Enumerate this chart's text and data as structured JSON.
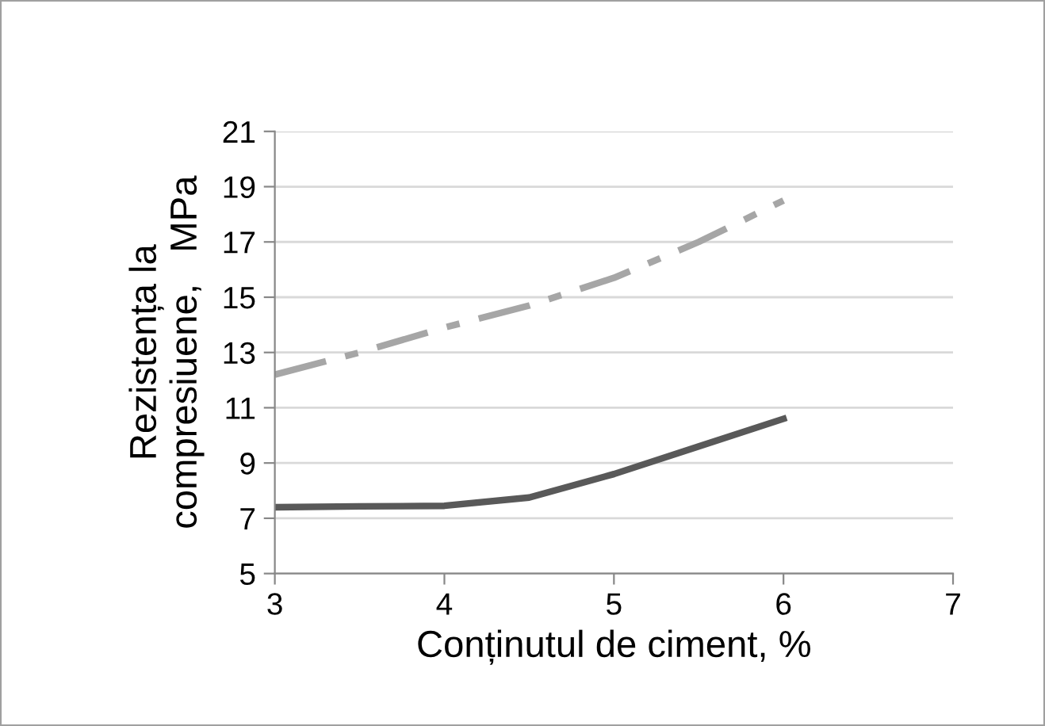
{
  "chart_data": {
    "type": "line",
    "xlabel": "Conținutul de ciment, %",
    "ylabel": "Rezistența la\ncompresiuene,   MPa",
    "x": [
      3,
      3.5,
      4,
      4.5,
      5,
      5.5,
      6
    ],
    "series": [
      {
        "color": "#595959",
        "line_style": "solid",
        "values": [
          7.4,
          7.43,
          7.45,
          7.75,
          8.6,
          9.6,
          10.6
        ]
      },
      {
        "color": "#a6a6a6",
        "line_style": "dashed",
        "values": [
          12.2,
          13.0,
          13.9,
          14.7,
          15.7,
          17.0,
          18.5
        ]
      }
    ],
    "xlim": [
      3,
      7
    ],
    "xticks": [
      3,
      4,
      5,
      6,
      7
    ],
    "ylim": [
      5,
      21
    ],
    "yticks": [
      5,
      7,
      9,
      11,
      13,
      15,
      17,
      19,
      21
    ],
    "grid": "y",
    "legend": false,
    "marker": "none"
  }
}
